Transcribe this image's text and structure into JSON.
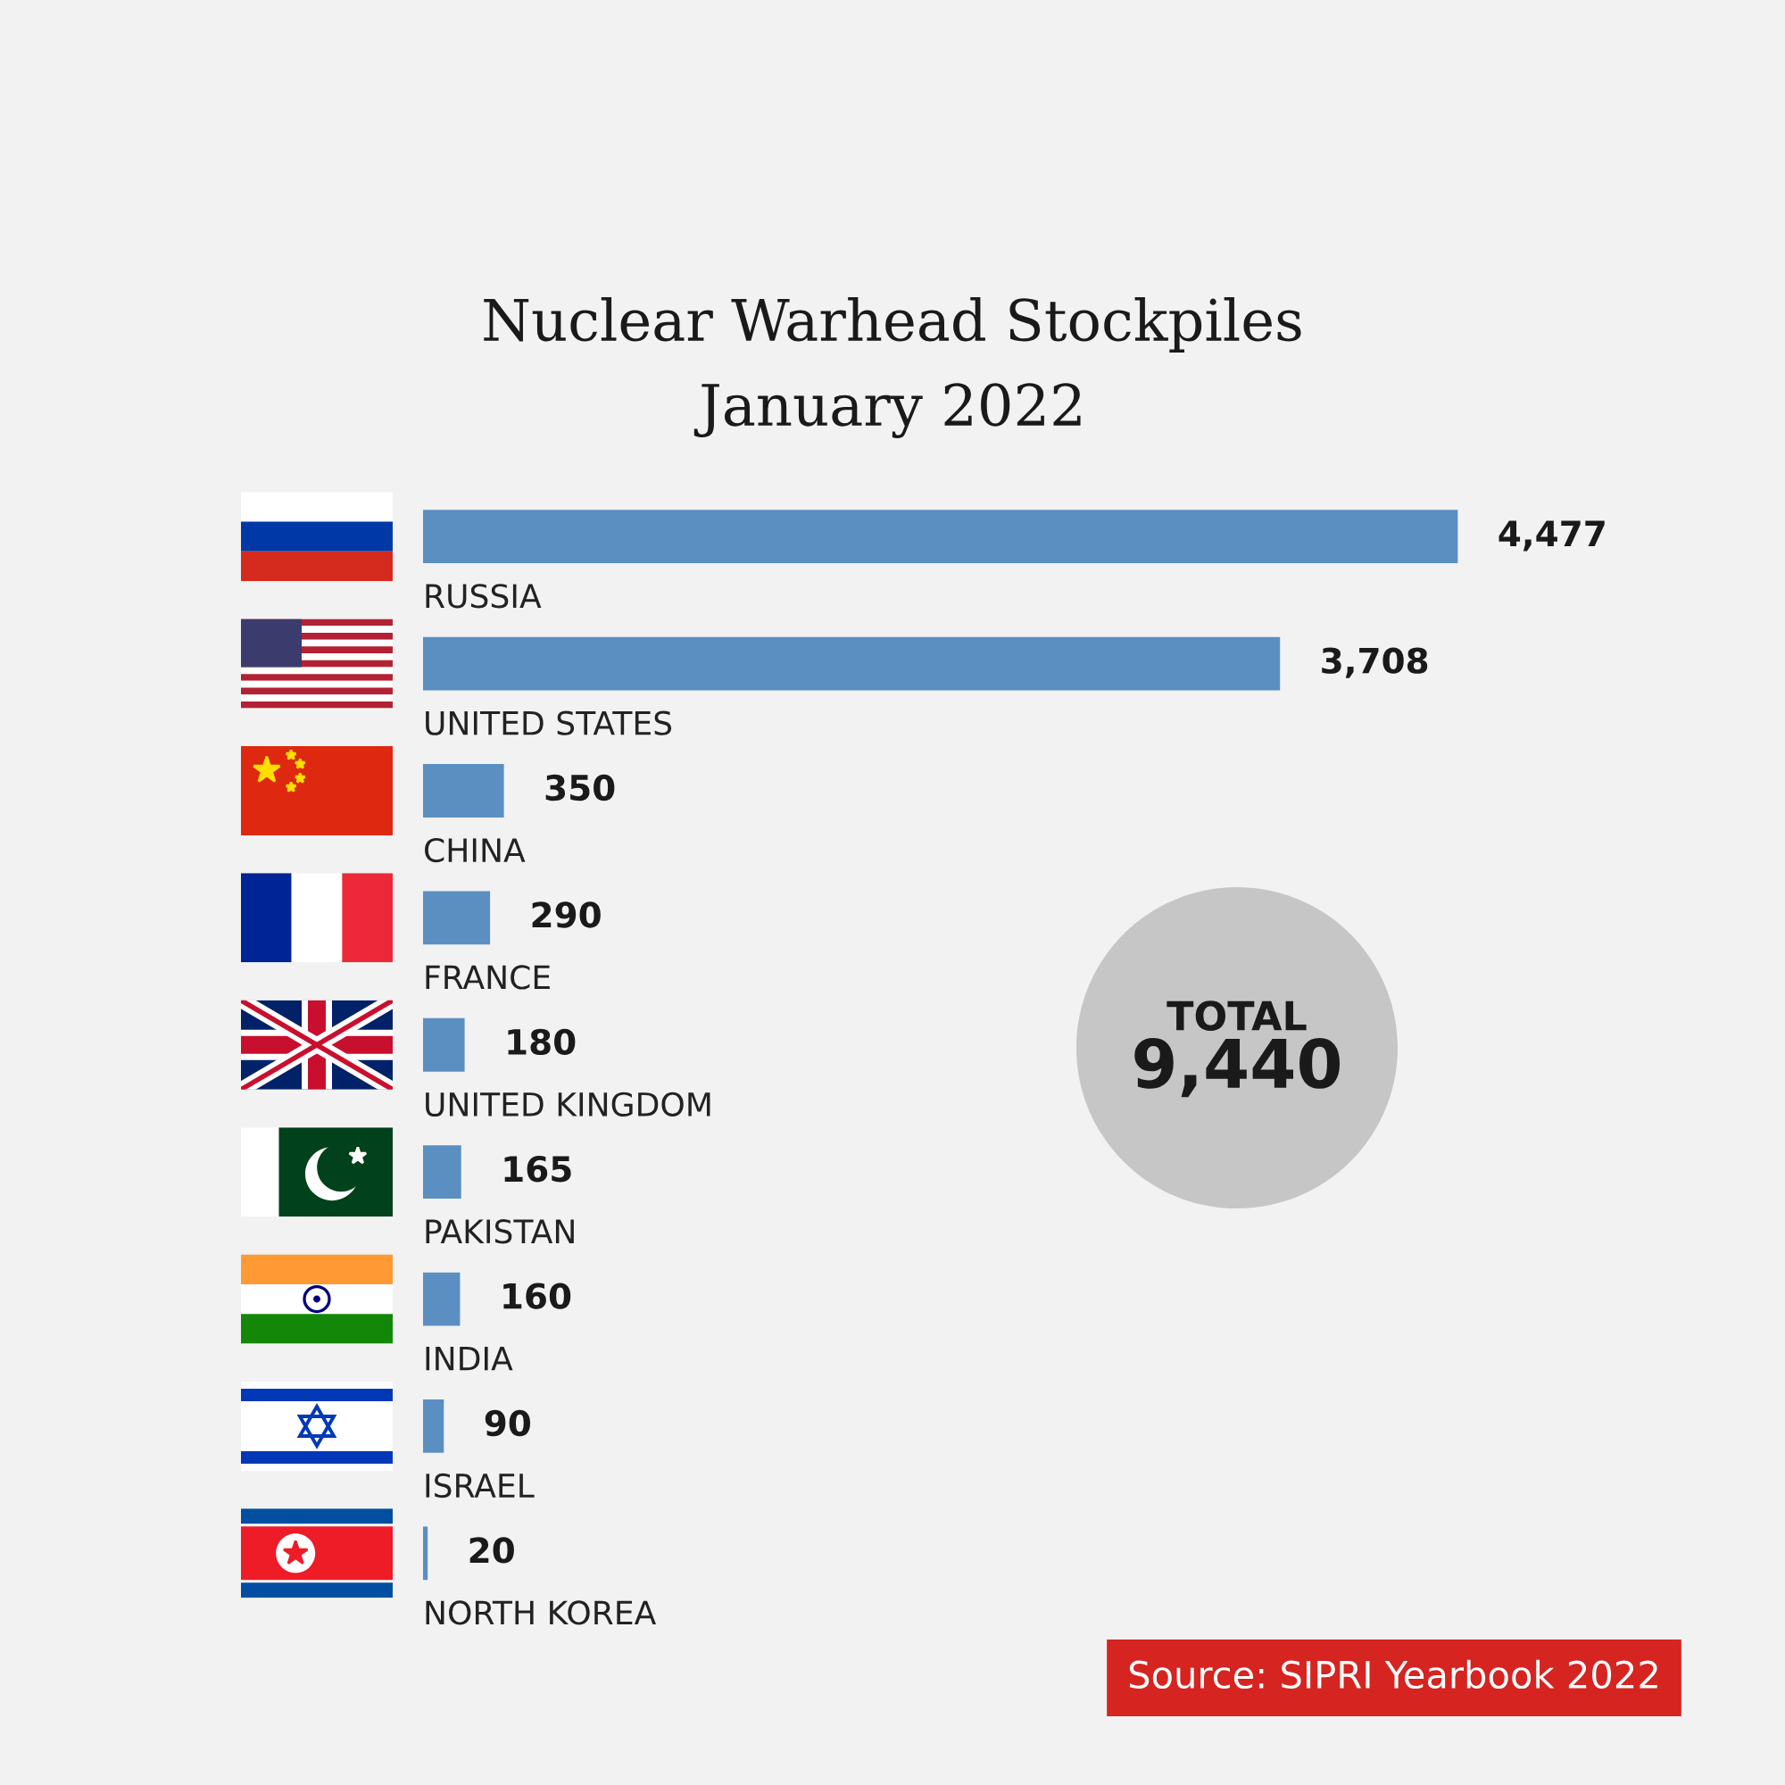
{
  "chart_data": {
    "type": "bar",
    "orientation": "horizontal",
    "title": "Nuclear Warhead Stockpiles",
    "subtitle": "January 2022",
    "categories": [
      "RUSSIA",
      "UNITED STATES",
      "CHINA",
      "FRANCE",
      "UNITED KINGDOM",
      "PAKISTAN",
      "INDIA",
      "ISRAEL",
      "NORTH KOREA"
    ],
    "values": [
      4477,
      3708,
      350,
      290,
      180,
      165,
      160,
      90,
      20
    ],
    "value_labels": [
      "4,477",
      "3,708",
      "350",
      "290",
      "180",
      "165",
      "160",
      "90",
      "20"
    ],
    "color": "#5b8fc2",
    "tick_labels": "y",
    "annotations": [
      "TOTAL",
      "9,440",
      "Source: SIPRI Yearbook 2022"
    ]
  }
}
